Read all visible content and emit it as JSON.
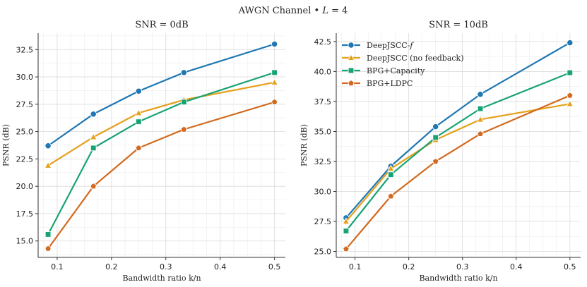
{
  "figure": {
    "title_prefix": "AWGN Channel • ",
    "title_var": "L",
    "title_suffix": " = 4"
  },
  "legend_labels": {
    "DeepJSCC-f": "DeepJSCC-",
    "DeepJSCC-f_italic": "f"
  },
  "chart_data": [
    {
      "type": "line",
      "title": "SNR = 0dB",
      "xlabel": "Bandwidth ratio k/n",
      "ylabel": "PSNR (dB)",
      "xlim": [
        0.065,
        0.52
      ],
      "ylim": [
        13.5,
        34.0
      ],
      "xticks": [
        0.1,
        0.2,
        0.3,
        0.4,
        0.5
      ],
      "yticks": [
        15.0,
        17.5,
        20.0,
        22.5,
        25.0,
        27.5,
        30.0,
        32.5
      ],
      "x": [
        0.0833,
        0.1667,
        0.25,
        0.3333,
        0.5
      ],
      "series": [
        {
          "name": "DeepJSCC-f",
          "color": "#1f77b4",
          "marker": "circle",
          "values": [
            23.7,
            26.6,
            28.7,
            30.4,
            33.0
          ]
        },
        {
          "name": "DeepJSCC (no feedback)",
          "color": "#e5a11c",
          "marker": "triangle",
          "values": [
            21.9,
            24.5,
            26.7,
            27.9,
            29.5
          ]
        },
        {
          "name": "BPG+Capacity",
          "color": "#18a374",
          "marker": "square",
          "values": [
            15.6,
            23.5,
            25.9,
            27.7,
            30.4
          ]
        },
        {
          "name": "BPG+LDPC",
          "color": "#d2691e",
          "marker": "pentagon",
          "values": [
            14.3,
            20.0,
            23.5,
            25.2,
            27.7
          ]
        }
      ],
      "legend": "none",
      "grid": true
    },
    {
      "type": "line",
      "title": "SNR = 10dB",
      "xlabel": "Bandwidth ratio k/n",
      "ylabel": "PSNR (dB)",
      "xlim": [
        0.065,
        0.52
      ],
      "ylim": [
        24.5,
        43.2
      ],
      "xticks": [
        0.1,
        0.2,
        0.3,
        0.4,
        0.5
      ],
      "yticks": [
        25.0,
        27.5,
        30.0,
        32.5,
        35.0,
        37.5,
        40.0,
        42.5
      ],
      "x": [
        0.0833,
        0.1667,
        0.25,
        0.3333,
        0.5
      ],
      "series": [
        {
          "name": "DeepJSCC-f",
          "color": "#1f77b4",
          "marker": "circle",
          "values": [
            27.8,
            32.1,
            35.4,
            38.1,
            42.4
          ]
        },
        {
          "name": "DeepJSCC (no feedback)",
          "color": "#e5a11c",
          "marker": "triangle",
          "values": [
            27.5,
            31.9,
            34.3,
            36.0,
            37.3
          ]
        },
        {
          "name": "BPG+Capacity",
          "color": "#18a374",
          "marker": "square",
          "values": [
            26.7,
            31.4,
            34.5,
            36.9,
            39.9
          ]
        },
        {
          "name": "BPG+LDPC",
          "color": "#d2691e",
          "marker": "pentagon",
          "values": [
            25.2,
            29.6,
            32.5,
            34.8,
            38.0
          ]
        }
      ],
      "legend": "top-left",
      "grid": true
    }
  ]
}
